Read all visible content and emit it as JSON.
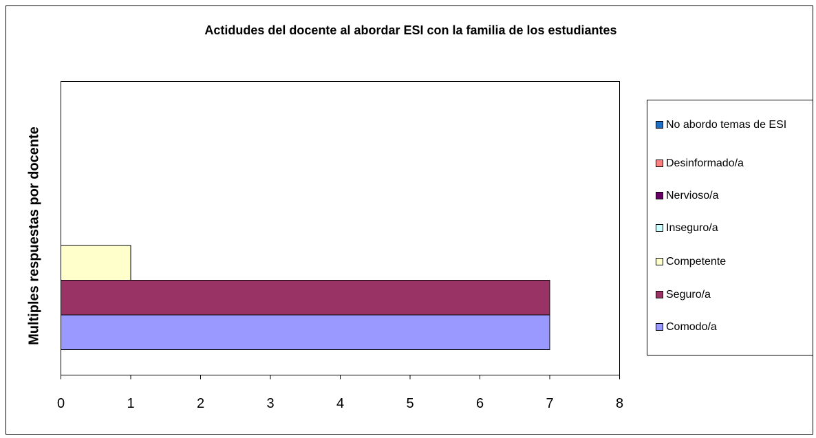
{
  "chart_data": {
    "type": "hbar",
    "title": "Actidudes del docente al abordar ESI con la familia de los estudiantes",
    "y_label": "Multiples respuestas por docente",
    "series": [
      {
        "name": "No abordo temas de ESI",
        "color": "#1f6fc5",
        "values": [
          0
        ]
      },
      {
        "name": "Desinformado/a",
        "color": "#ff8080",
        "values": [
          0
        ]
      },
      {
        "name": "Nervioso/a",
        "color": "#660066",
        "values": [
          0
        ]
      },
      {
        "name": "Inseguro/a",
        "color": "#ccffff",
        "values": [
          0
        ]
      },
      {
        "name": "Competente",
        "color": "#ffffcc",
        "values": [
          1
        ]
      },
      {
        "name": "Seguro/a",
        "color": "#993366",
        "values": [
          7
        ]
      },
      {
        "name": "Comodo/a",
        "color": "#9999ff",
        "values": [
          7
        ]
      }
    ],
    "xlim": [
      0,
      8
    ],
    "xticks": [
      0,
      1,
      2,
      3,
      4,
      5,
      6,
      7,
      8
    ],
    "grid": false,
    "legend": "right"
  }
}
